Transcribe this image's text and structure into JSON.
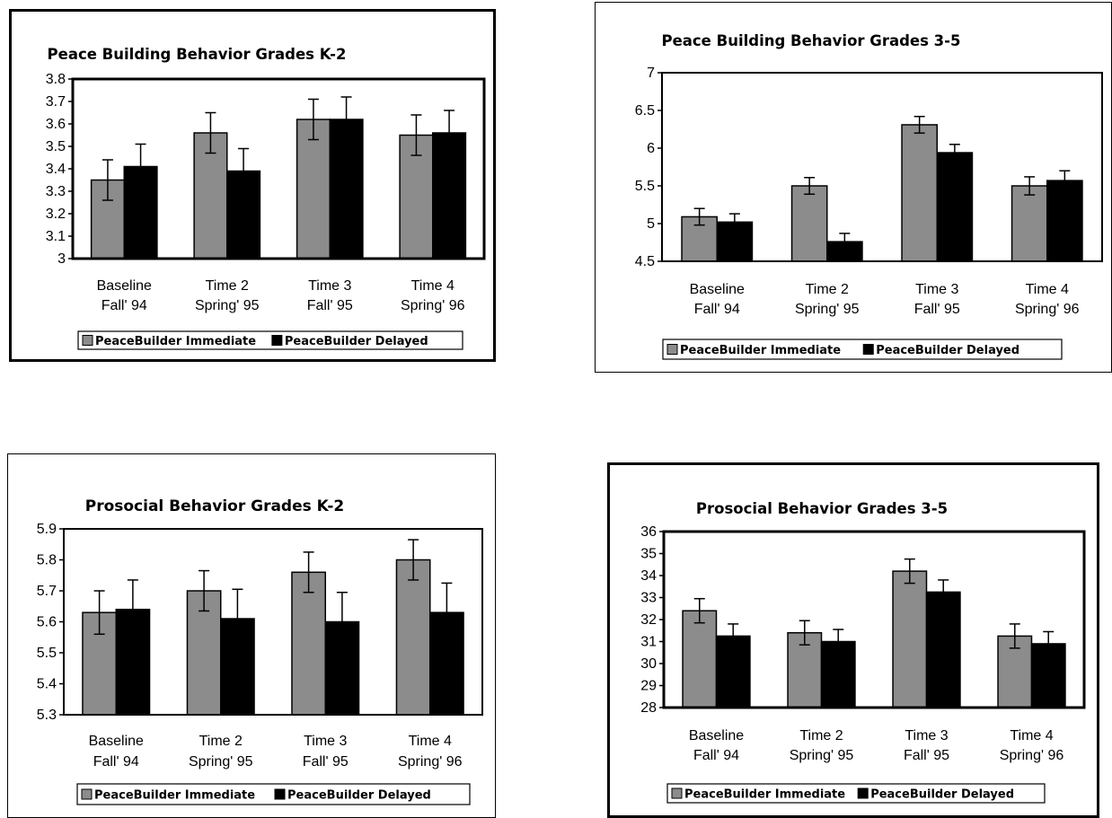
{
  "chart_data": [
    {
      "type": "bar",
      "title": "Peace Building Behavior Grades K-2",
      "categories": [
        [
          "Baseline",
          "Fall' 94"
        ],
        [
          "Time 2",
          "Spring' 95"
        ],
        [
          "Time 3",
          "Fall' 95"
        ],
        [
          "Time 4",
          "Spring' 96"
        ]
      ],
      "yticks": [
        "3",
        "3.1",
        "3.2",
        "3.3",
        "3.4",
        "3.5",
        "3.6",
        "3.7",
        "3.8"
      ],
      "ylim": [
        3,
        3.8
      ],
      "series": [
        {
          "name": "PeaceBuilder Immediate",
          "color": "#8c8c8c",
          "values": [
            3.35,
            3.56,
            3.62,
            3.55
          ],
          "errors": [
            0.09,
            0.09,
            0.09,
            0.09
          ]
        },
        {
          "name": "PeaceBuilder Delayed",
          "color": "#000000",
          "values": [
            3.41,
            3.39,
            3.62,
            3.56
          ],
          "errors": [
            0.1,
            0.1,
            0.1,
            0.1
          ]
        }
      ],
      "legend": "bottom"
    },
    {
      "type": "bar",
      "title": "Peace Building Behavior Grades 3-5",
      "categories": [
        [
          "Baseline",
          "Fall' 94"
        ],
        [
          "Time 2",
          "Spring' 95"
        ],
        [
          "Time 3",
          "Fall' 95"
        ],
        [
          "Time 4",
          "Spring' 96"
        ]
      ],
      "yticks": [
        "4.5",
        "5",
        "5.5",
        "6",
        "6.5",
        "7"
      ],
      "ylim": [
        4.5,
        7
      ],
      "series": [
        {
          "name": "PeaceBuilder Immediate",
          "color": "#8c8c8c",
          "values": [
            5.09,
            5.5,
            6.31,
            5.5
          ],
          "errors": [
            0.11,
            0.11,
            0.11,
            0.12
          ]
        },
        {
          "name": "PeaceBuilder Delayed",
          "color": "#000000",
          "values": [
            5.02,
            4.76,
            5.94,
            5.57
          ],
          "errors": [
            0.11,
            0.11,
            0.11,
            0.13
          ]
        }
      ],
      "legend": "bottom"
    },
    {
      "type": "bar",
      "title": "Prosocial Behavior Grades K-2",
      "categories": [
        [
          "Baseline",
          "Fall' 94"
        ],
        [
          "Time 2",
          "Spring' 95"
        ],
        [
          "Time 3",
          "Fall' 95"
        ],
        [
          "Time 4",
          "Spring' 96"
        ]
      ],
      "yticks": [
        "5.3",
        "5.4",
        "5.5",
        "5.6",
        "5.7",
        "5.8",
        "5.9"
      ],
      "ylim": [
        5.3,
        5.9
      ],
      "series": [
        {
          "name": "PeaceBuilder Immediate",
          "color": "#8c8c8c",
          "values": [
            5.63,
            5.7,
            5.76,
            5.8
          ],
          "errors": [
            0.07,
            0.065,
            0.065,
            0.065
          ]
        },
        {
          "name": "PeaceBuilder Delayed",
          "color": "#000000",
          "values": [
            5.64,
            5.61,
            5.6,
            5.63
          ],
          "errors": [
            0.095,
            0.095,
            0.095,
            0.095
          ]
        }
      ],
      "legend": "bottom"
    },
    {
      "type": "bar",
      "title": "Prosocial Behavior Grades 3-5",
      "categories": [
        [
          "Baseline",
          "Fall' 94"
        ],
        [
          "Time 2",
          "Spring' 95"
        ],
        [
          "Time 3",
          "Fall' 95"
        ],
        [
          "Time 4",
          "Spring' 96"
        ]
      ],
      "yticks": [
        "28",
        "29",
        "30",
        "31",
        "32",
        "33",
        "34",
        "35",
        "36"
      ],
      "ylim": [
        28,
        36
      ],
      "series": [
        {
          "name": "PeaceBuilder Immediate",
          "color": "#8c8c8c",
          "values": [
            32.4,
            31.4,
            34.2,
            31.25
          ],
          "errors": [
            0.55,
            0.55,
            0.55,
            0.55
          ]
        },
        {
          "name": "PeaceBuilder Delayed",
          "color": "#000000",
          "values": [
            31.25,
            31,
            33.25,
            30.9
          ],
          "errors": [
            0.55,
            0.55,
            0.55,
            0.55
          ]
        }
      ],
      "legend": "bottom"
    }
  ]
}
